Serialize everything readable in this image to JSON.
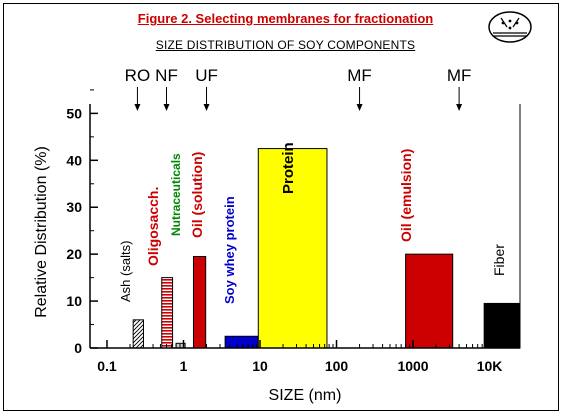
{
  "title": "Figure 2.  Selecting membranes for fractionation",
  "subtitle": "SIZE DISTRIBUTION OF SOY COMPONENTS",
  "colors": {
    "title": "#cc0000",
    "yellow": "#ffff00",
    "red": "#cc0000",
    "blue": "#0000cc",
    "black": "#000000",
    "green": "#008800",
    "gray": "#cccccc"
  },
  "membranes": [
    {
      "label": "RO",
      "size": 0.25
    },
    {
      "label": "NF",
      "size": 0.6
    },
    {
      "label": "UF",
      "size": 2
    },
    {
      "label": "MF",
      "size": 200
    },
    {
      "label": "MF",
      "size": 4000
    }
  ],
  "chart_data": {
    "type": "bar",
    "xlabel": "SIZE (nm)",
    "ylabel": "Relative Distribution (%)",
    "xscale": "log",
    "xlim": [
      0.06,
      25000
    ],
    "ylim": [
      0,
      52
    ],
    "yticks": [
      0,
      10,
      20,
      30,
      40,
      50
    ],
    "xticks": [
      {
        "value": 0.1,
        "label": "0.1"
      },
      {
        "value": 1,
        "label": "1"
      },
      {
        "value": 10,
        "label": "10"
      },
      {
        "value": 100,
        "label": "100"
      },
      {
        "value": 1000,
        "label": "1000"
      },
      {
        "value": 10000,
        "label": "10K"
      }
    ],
    "series": [
      {
        "name": "Ash (salts)",
        "x_from": 0.22,
        "x_to": 0.3,
        "value": 6,
        "color": "#000000",
        "pattern": "diagonal",
        "label_color": "#000000",
        "label_bold": false
      },
      {
        "name": "Oligosacch.",
        "x_from": 0.52,
        "x_to": 0.72,
        "value": 15,
        "color": "#cc0000",
        "pattern": "horizontal",
        "label_color": "#cc0000",
        "label_bold": true
      },
      {
        "name": "Nutraceuticals",
        "x_from": 0.8,
        "x_to": 1.05,
        "value": 1,
        "color": "#cccccc",
        "pattern": "solid",
        "label_color": "#008800",
        "label_bold": true
      },
      {
        "name": "Oil (solution)",
        "x_from": 1.35,
        "x_to": 1.95,
        "value": 19.5,
        "color": "#cc0000",
        "pattern": "solid",
        "label_color": "#cc0000",
        "label_bold": true
      },
      {
        "name": "Soy whey protein",
        "x_from": 3.5,
        "x_to": 9.5,
        "value": 2.5,
        "color": "#0000cc",
        "pattern": "solid",
        "label_color": "#0000cc",
        "label_bold": true
      },
      {
        "name": "Protein",
        "x_from": 9.5,
        "x_to": 75,
        "value": 42.5,
        "color": "#ffff00",
        "pattern": "solid",
        "label_color": "#000000",
        "label_bold": true
      },
      {
        "name": "Oil (emulsion)",
        "x_from": 800,
        "x_to": 3300,
        "value": 20,
        "color": "#cc0000",
        "pattern": "solid",
        "label_color": "#cc0000",
        "label_bold": true
      },
      {
        "name": "Fiber",
        "x_from": 8500,
        "x_to": 25000,
        "value": 9.5,
        "color": "#000000",
        "pattern": "solid",
        "label_color": "#000000",
        "label_bold": false
      }
    ]
  }
}
